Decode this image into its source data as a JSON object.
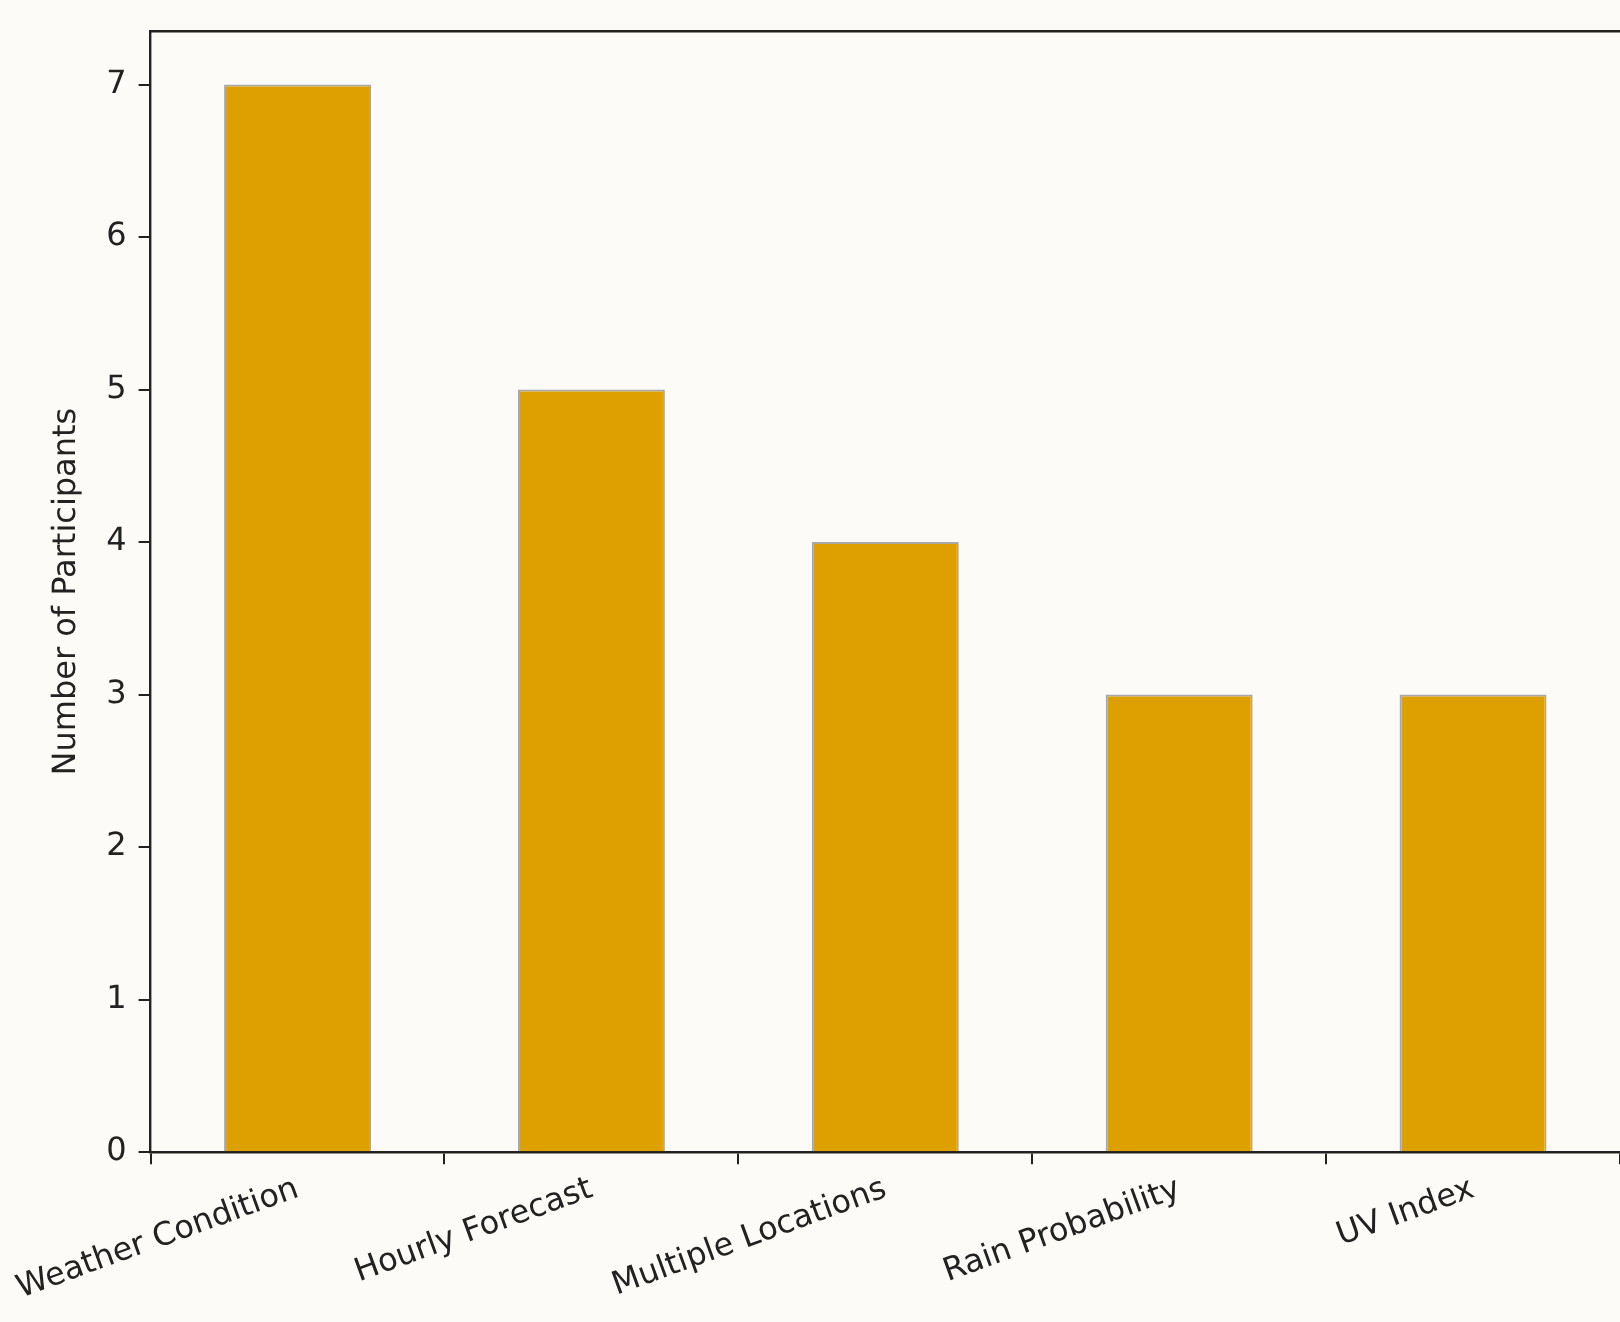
{
  "chart_data": {
    "type": "bar",
    "ylabel": "Number of Participants",
    "categories": [
      "Weather Condition",
      "Hourly Forecast",
      "Multiple Locations",
      "Rain Probability",
      "UV Index"
    ],
    "values": [
      7,
      5,
      4,
      3,
      3
    ],
    "color": "#dda000",
    "ylim": [
      0,
      7.35
    ],
    "yticks": [
      0,
      1,
      2,
      3,
      4,
      5,
      6,
      7
    ],
    "grid": false,
    "legend": false
  }
}
